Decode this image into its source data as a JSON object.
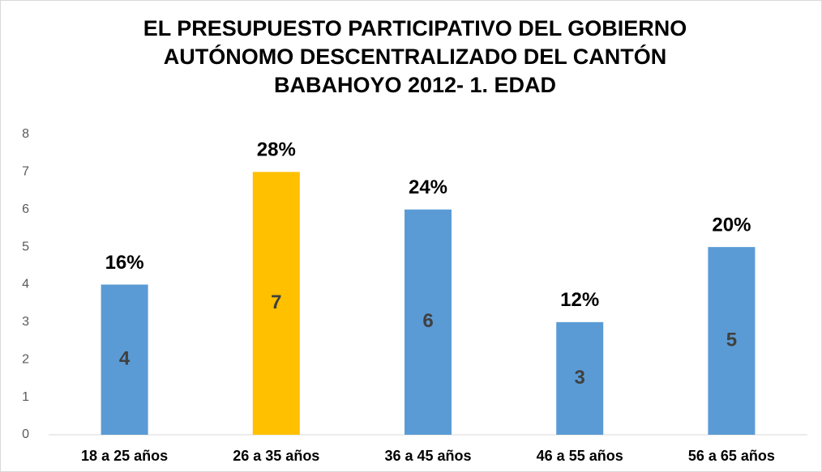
{
  "chart_data": {
    "type": "bar",
    "title_lines": [
      "EL PRESUPUESTO PARTICIPATIVO DEL GOBIERNO",
      "AUTÓNOMO DESCENTRALIZADO DEL CANTÓN",
      "BABAHOYO 2012- 1. EDAD"
    ],
    "categories": [
      "18 a 25 años",
      "26 a 35 años",
      "36 a 45 años",
      "46 a 55 años",
      "56 a 65 años"
    ],
    "values": [
      4,
      7,
      6,
      3,
      5
    ],
    "percents": [
      16,
      28,
      24,
      12,
      20
    ],
    "percent_labels": [
      "16%",
      "28%",
      "24%",
      "12%",
      "20%"
    ],
    "colors": [
      "#5b9bd5",
      "#ffc000",
      "#5b9bd5",
      "#5b9bd5",
      "#5b9bd5"
    ],
    "ylim": [
      0,
      8
    ],
    "yticks": [
      0,
      1,
      2,
      3,
      4,
      5,
      6,
      7,
      8
    ],
    "grid": false
  }
}
